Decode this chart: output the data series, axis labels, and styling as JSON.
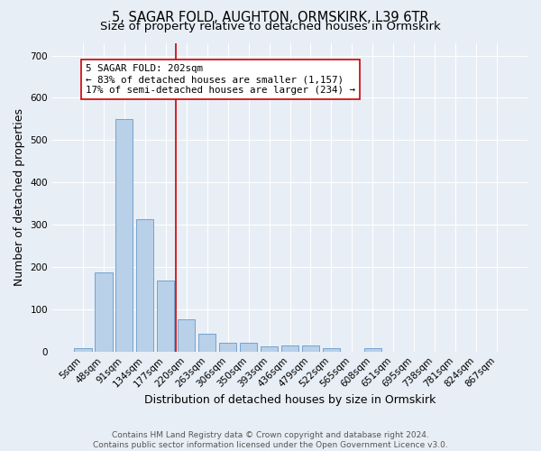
{
  "title": "5, SAGAR FOLD, AUGHTON, ORMSKIRK, L39 6TR",
  "subtitle": "Size of property relative to detached houses in Ormskirk",
  "xlabel": "Distribution of detached houses by size in Ormskirk",
  "ylabel": "Number of detached properties",
  "categories": [
    "5sqm",
    "48sqm",
    "91sqm",
    "134sqm",
    "177sqm",
    "220sqm",
    "263sqm",
    "306sqm",
    "350sqm",
    "393sqm",
    "436sqm",
    "479sqm",
    "522sqm",
    "565sqm",
    "608sqm",
    "651sqm",
    "695sqm",
    "738sqm",
    "781sqm",
    "824sqm",
    "867sqm"
  ],
  "values": [
    8,
    187,
    549,
    314,
    168,
    77,
    42,
    20,
    20,
    13,
    14,
    14,
    8,
    0,
    7,
    0,
    0,
    0,
    0,
    0,
    0
  ],
  "bar_color": "#b8d0e8",
  "bar_edge_color": "#6699cc",
  "vline_x_index": 4.5,
  "vline_color": "#cc0000",
  "annotation_text": "5 SAGAR FOLD: 202sqm\n← 83% of detached houses are smaller (1,157)\n17% of semi-detached houses are larger (234) →",
  "ylim": [
    0,
    730
  ],
  "yticks": [
    0,
    100,
    200,
    300,
    400,
    500,
    600,
    700
  ],
  "footer": "Contains HM Land Registry data © Crown copyright and database right 2024.\nContains public sector information licensed under the Open Government Licence v3.0.",
  "bg_color": "#e8eef5",
  "plot_bg_color": "#e8eef5",
  "grid_color": "#ffffff",
  "title_fontsize": 10.5,
  "subtitle_fontsize": 9.5,
  "label_fontsize": 9,
  "tick_fontsize": 7.5,
  "footer_fontsize": 6.5
}
